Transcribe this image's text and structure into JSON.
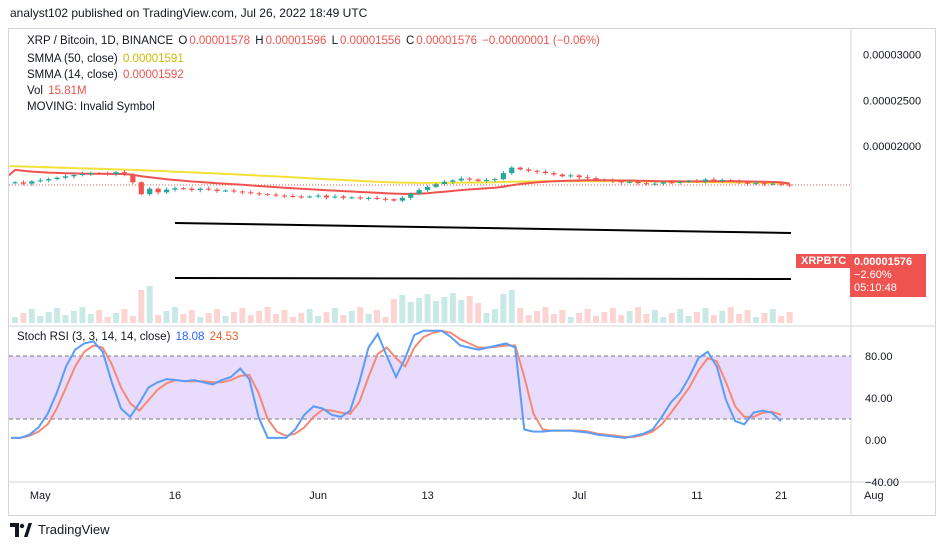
{
  "header": {
    "publisher": "analyst102 published on TradingView.com, Jul 26, 2022 18:49 UTC"
  },
  "legend": {
    "symbol_line": "XRP / Bitcoin, 1D, BINANCE",
    "o_label": "O",
    "o": "0.00001578",
    "h_label": "H",
    "h": "0.00001596",
    "l_label": "L",
    "l": "0.00001556",
    "c_label": "C",
    "c": "0.00001576",
    "change": "−0.00000001 (−0.06%)",
    "smma50_label": "SMMA (50, close)",
    "smma50": "0.00001591",
    "smma14_label": "SMMA (14, close)",
    "smma14": "0.00001592",
    "vol_label": "Vol",
    "vol": "15.81M",
    "moving": "MOVING: Invalid Symbol"
  },
  "price_tag": {
    "symbol": "XRPBTC",
    "price": "0.00001576",
    "change": "−2.60%",
    "countdown": "05:10:48"
  },
  "stoch": {
    "label": "Stoch RSI (3, 3, 14, 14, close)",
    "k": "18.08",
    "d": "24.53"
  },
  "footer": {
    "brand": "TradingView"
  },
  "colors": {
    "up": "#26a69a",
    "down": "#ef5350",
    "smma50": "#f5e03a",
    "smma14": "#ef5350",
    "stoch_k": "#5b9cf6",
    "stoch_d": "#f48a75",
    "band": "#e1cffb"
  },
  "chart_data": [
    {
      "type": "candlestick",
      "title": "XRP / Bitcoin, 1D, BINANCE",
      "x_ticks": [
        "May",
        "16",
        "Jun",
        "13",
        "Jul",
        "11",
        "21",
        "Aug"
      ],
      "y_ticks": [
        "0.00003000",
        "0.00002500",
        "0.00002000"
      ],
      "ylim": [
        1.28e-05,
        3.2e-05
      ],
      "close": [
        16.05,
        15.9,
        16.15,
        16.25,
        16.4,
        16.55,
        16.7,
        16.85,
        16.95,
        17.05,
        17.0,
        16.95,
        17.15,
        16.85,
        16.05,
        14.75,
        15.35,
        14.95,
        15.25,
        15.4,
        15.35,
        15.2,
        15.35,
        15.25,
        15.1,
        15.15,
        15.05,
        14.95,
        14.85,
        14.75,
        14.7,
        14.6,
        14.55,
        14.5,
        14.45,
        14.5,
        14.6,
        14.4,
        14.5,
        14.35,
        14.4,
        14.3,
        14.35,
        14.25,
        14.2,
        14.05,
        14.35,
        14.8,
        15.2,
        15.55,
        15.85,
        16.1,
        16.25,
        16.45,
        16.35,
        16.2,
        16.3,
        16.4,
        17.05,
        17.65,
        17.45,
        17.3,
        17.2,
        17.05,
        16.9,
        16.7,
        16.8,
        16.6,
        16.5,
        16.35,
        16.25,
        16.15,
        16.05,
        16.1,
        15.95,
        15.85,
        15.9,
        16.05,
        16.0,
        16.1,
        16.2,
        16.15,
        16.35,
        16.2,
        16.3,
        16.15,
        16.05,
        15.9,
        15.95,
        15.85,
        15.9,
        15.8,
        15.76
      ],
      "smma50": [
        17.8,
        17.77,
        17.74,
        17.72,
        17.69,
        17.66,
        17.63,
        17.6,
        17.57,
        17.55,
        17.52,
        17.49,
        17.46,
        17.43,
        17.4,
        17.36,
        17.33,
        17.29,
        17.25,
        17.21,
        17.17,
        17.13,
        17.09,
        17.05,
        17.01,
        16.96,
        16.92,
        16.87,
        16.83,
        16.78,
        16.74,
        16.69,
        16.64,
        16.59,
        16.54,
        16.49,
        16.44,
        16.39,
        16.35,
        16.3,
        16.25,
        16.2,
        16.15,
        16.11,
        16.07,
        16.04,
        16.01,
        15.99,
        15.98,
        15.98,
        15.98,
        15.99,
        16.0,
        16.01,
        16.02,
        16.03,
        16.04,
        16.06,
        16.08,
        16.1,
        16.12,
        16.14,
        16.15,
        16.16,
        16.17,
        16.18,
        16.18,
        16.18,
        16.18,
        16.17,
        16.17,
        16.16,
        16.16,
        16.15,
        16.14,
        16.13,
        16.12,
        16.11,
        16.1,
        16.09,
        16.08,
        16.07,
        16.06,
        16.05,
        16.04,
        16.03,
        16.02,
        16.01,
        16.0,
        15.98,
        15.96,
        15.93,
        15.91
      ],
      "smma14": [
        17.4,
        17.3,
        17.22,
        17.16,
        17.11,
        17.07,
        17.04,
        17.02,
        17.0,
        16.99,
        16.98,
        16.97,
        16.97,
        16.94,
        16.87,
        16.71,
        16.61,
        16.48,
        16.38,
        16.3,
        16.22,
        16.14,
        16.08,
        16.01,
        15.95,
        15.89,
        15.83,
        15.77,
        15.71,
        15.64,
        15.58,
        15.52,
        15.46,
        15.4,
        15.34,
        15.29,
        15.24,
        15.19,
        15.14,
        15.09,
        15.04,
        14.99,
        14.95,
        14.9,
        14.86,
        14.81,
        14.78,
        14.78,
        14.81,
        14.86,
        14.94,
        15.02,
        15.11,
        15.2,
        15.27,
        15.33,
        15.39,
        15.45,
        15.57,
        15.73,
        15.86,
        15.96,
        16.04,
        16.11,
        16.16,
        16.19,
        16.23,
        16.25,
        16.27,
        16.27,
        16.27,
        16.26,
        16.25,
        16.24,
        16.22,
        16.2,
        16.18,
        16.17,
        16.16,
        16.15,
        16.15,
        16.15,
        16.16,
        16.16,
        16.17,
        16.17,
        16.16,
        16.14,
        16.12,
        16.1,
        16.08,
        16.05,
        15.92
      ],
      "series": [
        {
          "name": "SMMA (50, close)"
        },
        {
          "name": "SMMA (14, close)"
        }
      ]
    },
    {
      "type": "line",
      "title": "Stoch RSI (3, 3, 14, 14, close)",
      "y_ticks": [
        80,
        40,
        0,
        -40
      ],
      "ylim": [
        -40,
        100
      ],
      "band": [
        20,
        80
      ],
      "k": [
        2,
        2,
        5,
        12,
        25,
        45,
        70,
        86,
        92,
        94,
        84,
        55,
        30,
        22,
        35,
        50,
        55,
        58,
        57,
        56,
        57,
        55,
        53,
        57,
        60,
        68,
        58,
        22,
        2,
        2,
        2,
        10,
        24,
        32,
        30,
        24,
        22,
        28,
        55,
        88,
        101,
        80,
        60,
        78,
        100,
        104,
        104,
        104,
        98,
        90,
        88,
        86,
        88,
        90,
        92,
        88,
        10,
        8,
        8,
        9,
        9,
        9,
        8,
        7,
        5,
        4,
        3,
        2,
        4,
        6,
        10,
        22,
        36,
        45,
        60,
        78,
        84,
        70,
        38,
        18,
        15,
        26,
        28,
        26,
        18
      ],
      "d": [
        2,
        2,
        4,
        8,
        15,
        30,
        50,
        70,
        84,
        90,
        88,
        72,
        50,
        35,
        28,
        38,
        48,
        54,
        57,
        56,
        56,
        56,
        55,
        55,
        57,
        61,
        62,
        45,
        20,
        8,
        4,
        6,
        12,
        22,
        29,
        28,
        26,
        25,
        36,
        60,
        82,
        88,
        78,
        70,
        88,
        98,
        102,
        104,
        102,
        96,
        92,
        88,
        88,
        89,
        90,
        90,
        60,
        25,
        10,
        9,
        9,
        9,
        9,
        8,
        6,
        5,
        4,
        3,
        3,
        5,
        8,
        15,
        26,
        38,
        50,
        66,
        78,
        75,
        55,
        32,
        22,
        22,
        26,
        27,
        24
      ]
    }
  ]
}
